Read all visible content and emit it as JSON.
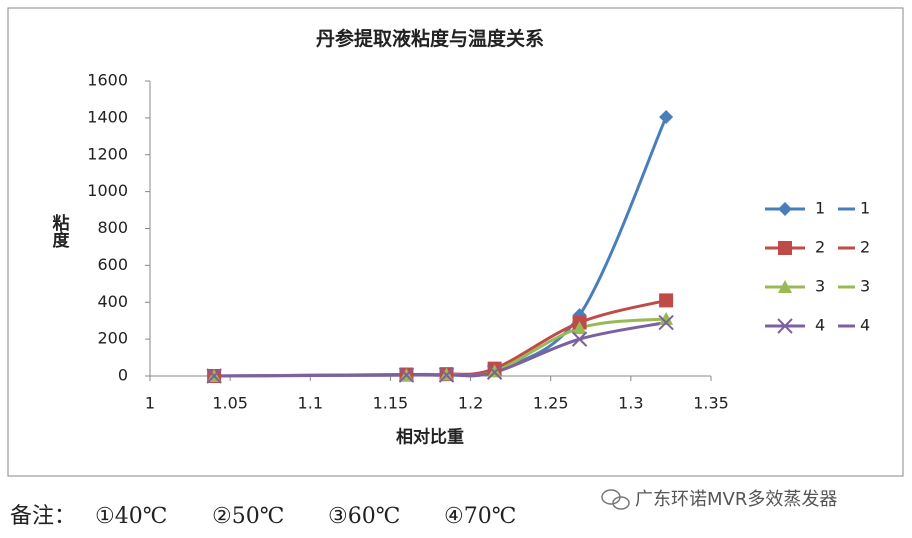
{
  "chart_data": {
    "type": "line",
    "title": "丹参提取液粘度与温度关系",
    "x_label": "相对比重",
    "y_label": "粘度",
    "x": [
      1.04,
      1.16,
      1.185,
      1.215,
      1.268,
      1.322
    ],
    "series": [
      {
        "name": "1",
        "color": "#4a7ebb",
        "marker": "diamond",
        "values": [
          0,
          8,
          10,
          30,
          330,
          1405
        ]
      },
      {
        "name": "2",
        "color": "#be4b48",
        "marker": "square",
        "values": [
          0,
          8,
          10,
          40,
          290,
          410
        ]
      },
      {
        "name": "3",
        "color": "#98b954",
        "marker": "triangle",
        "values": [
          0,
          5,
          8,
          25,
          260,
          310
        ]
      },
      {
        "name": "4",
        "color": "#7d60a0",
        "marker": "x",
        "values": [
          0,
          5,
          5,
          20,
          200,
          290
        ]
      }
    ],
    "xlim": [
      1,
      1.35
    ],
    "xticks": [
      1,
      1.05,
      1.1,
      1.15,
      1.2,
      1.25,
      1.3,
      1.35
    ],
    "ylim": [
      0,
      1600
    ],
    "yticks": [
      0,
      200,
      400,
      600,
      800,
      1000,
      1200,
      1400,
      1600
    ],
    "legend": "right"
  },
  "footer": {
    "note_label": "备注：",
    "notes": [
      "①40℃",
      "②50℃",
      "③60℃",
      "④70℃"
    ],
    "watermark": "广东环诺MVR多效蒸发器"
  }
}
